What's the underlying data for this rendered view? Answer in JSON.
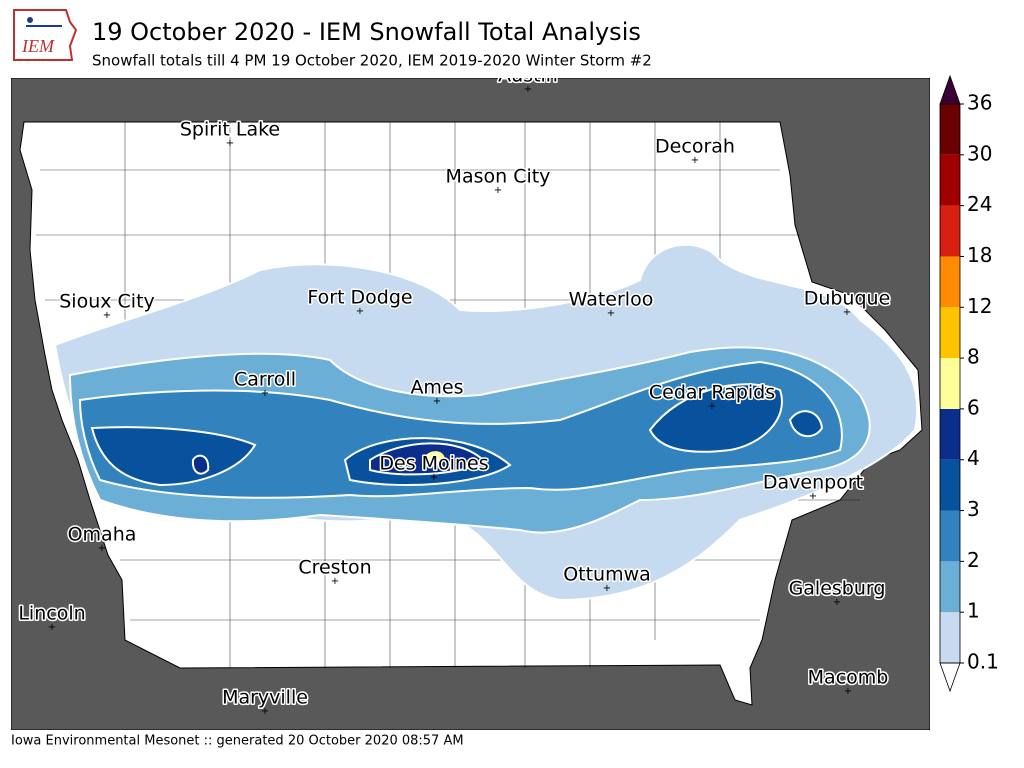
{
  "header": {
    "logo_text": "IEM",
    "title": "19 October 2020 - IEM Snowfall Total Analysis",
    "subtitle": "Snowfall totals till 4 PM 19 October 2020, IEM 2019-2020 Winter Storm #2"
  },
  "map": {
    "cities": [
      {
        "label": "Austin"
      },
      {
        "label": "Spirit Lake"
      },
      {
        "label": "Decorah"
      },
      {
        "label": "Mason City"
      },
      {
        "label": "Sioux City"
      },
      {
        "label": "Fort Dodge"
      },
      {
        "label": "Waterloo"
      },
      {
        "label": "Dubuque"
      },
      {
        "label": "Carroll"
      },
      {
        "label": "Ames"
      },
      {
        "label": "Cedar Rapids"
      },
      {
        "label": "Des Moines"
      },
      {
        "label": "Davenport"
      },
      {
        "label": "Omaha"
      },
      {
        "label": "Creston"
      },
      {
        "label": "Ottumwa"
      },
      {
        "label": "Galesburg"
      },
      {
        "label": "Lincoln"
      },
      {
        "label": "Maryville"
      },
      {
        "label": "Macomb"
      }
    ]
  },
  "colorbar": {
    "ticks": [
      0.1,
      1,
      2,
      3,
      4,
      6,
      8,
      12,
      18,
      24,
      30,
      36
    ],
    "colors": [
      "#c6dbef",
      "#6baed6",
      "#3182bd",
      "#08519c",
      "#0b2d8c",
      "#ffff99",
      "#ffc300",
      "#ff8c00",
      "#d92010",
      "#a00000",
      "#6a0000"
    ],
    "over_color": "#3a0036",
    "under_color": "#ffffff"
  },
  "footer": "Iowa Environmental Mesonet :: generated 20 October 2020 08:57 AM"
}
